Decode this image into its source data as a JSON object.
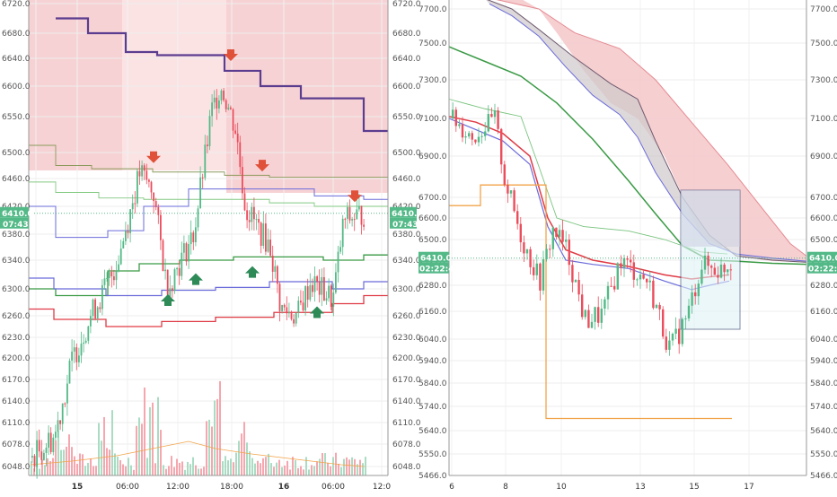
{
  "colors": {
    "up": "#53b987",
    "down": "#eb4d5c",
    "volume_up": "#a9dcc3",
    "volume_down": "#f5a6ae",
    "price_badge": "#53b987",
    "cloud_red": "#f4c3c6",
    "cloud_light": "#fbe3e4",
    "purple": "#5b3d8f",
    "green_line": "#3a9a45",
    "blue_line": "#6b6bdb",
    "red_line": "#e03a45",
    "orange_line": "#f2a44a",
    "arrow_red": "#e0513a",
    "arrow_green": "#2e8b57"
  },
  "chart_data": [
    {
      "type": "candlestick",
      "panel": "left",
      "current_price": "6410.0",
      "countdown": "07:43",
      "y_axis_ticks": [
        "6720.0",
        "6680.0",
        "6640.0",
        "6600.0",
        "6550.0",
        "6500.0",
        "6460.0",
        "6420.0",
        "6380.0",
        "6340.0",
        "6300.0",
        "6260.0",
        "6230.0",
        "6200.0",
        "6170.0",
        "6140.0",
        "6110.0",
        "6078.0",
        "6048.0"
      ],
      "x_axis_ticks": [
        "15",
        "06:00",
        "12:00",
        "18:00",
        "16",
        "06:00",
        "12:0"
      ],
      "ylim": [
        6040,
        6735
      ],
      "indicators": [
        "purple step line",
        "red cloud band",
        "green step line",
        "blue step line",
        "red step line",
        "volume bars"
      ],
      "signal_arrows": {
        "sell": [
          6488,
          6640,
          6475,
          6430
        ],
        "buy": [
          6288,
          6318,
          6328,
          6270
        ]
      }
    },
    {
      "type": "candlestick",
      "panel": "right",
      "current_price": "6410.0",
      "countdown": "02:22:43",
      "y_axis_ticks": [
        "7700.0",
        "7500.0",
        "7300.0",
        "7100.0",
        "6900.0",
        "6700.0",
        "6600.0",
        "6500.0",
        "6400.0",
        "6280.0",
        "6160.0",
        "6040.0",
        "5940.0",
        "5840.0",
        "5740.0",
        "5640.0",
        "5550.0",
        "5466.0"
      ],
      "x_axis_ticks": [
        "6",
        "8",
        "10",
        "13",
        "15",
        "17"
      ],
      "ylim": [
        5460,
        7760
      ],
      "indicators": [
        "red cloud band",
        "grey cloud band",
        "green moving average",
        "blue moving average",
        "red moving average",
        "orange step line",
        "selection box"
      ]
    }
  ]
}
